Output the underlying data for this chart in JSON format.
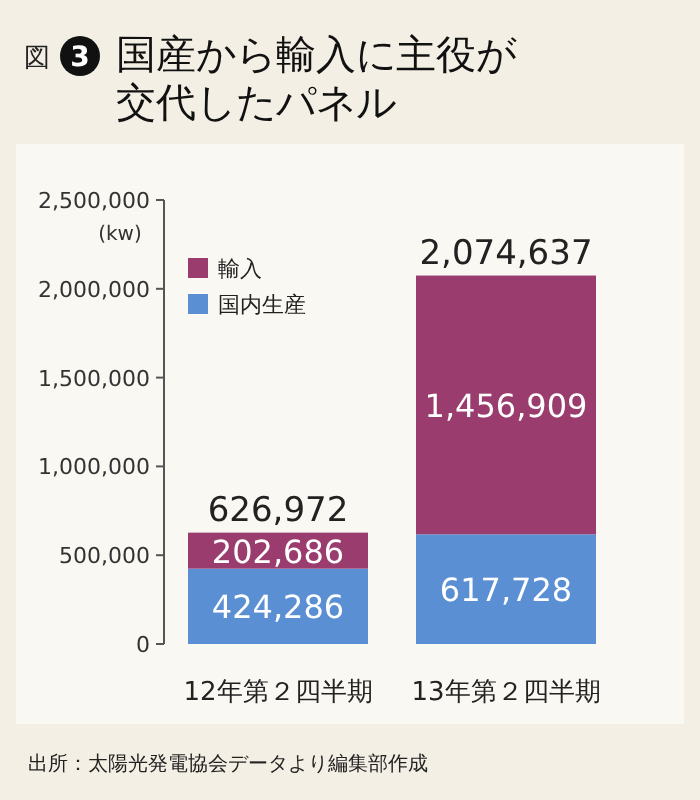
{
  "chart_data": {
    "type": "bar",
    "title": "国産から輸入に主役が交代したパネル",
    "ylabel": "(kw)",
    "categories": [
      "12年第２四半期",
      "13年第２四半期"
    ],
    "series": [
      {
        "name": "国内生産",
        "color": "#5b8fd3",
        "values": [
          424286,
          617728
        ],
        "value_labels": [
          "424,286",
          "617,728"
        ]
      },
      {
        "name": "輸入",
        "color": "#9a3d6e",
        "values": [
          202686,
          1456909
        ],
        "value_labels": [
          "202,686",
          "1,456,909"
        ]
      }
    ],
    "stacked": true,
    "totals": [
      "626,972",
      "2,074,637"
    ],
    "ylim": [
      0,
      2500000
    ],
    "yticks": [
      {
        "value": 0,
        "label": "0"
      },
      {
        "value": 500000,
        "label": "500,000"
      },
      {
        "value": 1000000,
        "label": "1,000,000"
      },
      {
        "value": 1500000,
        "label": "1,500,000"
      },
      {
        "value": 2000000,
        "label": "2,000,000"
      },
      {
        "value": 2500000,
        "label": "2,500,000"
      }
    ],
    "grid": false,
    "legend": "top left",
    "annotations": [
      "図",
      "3",
      "出所：太陽光発電協会データより編集部作成"
    ]
  }
}
